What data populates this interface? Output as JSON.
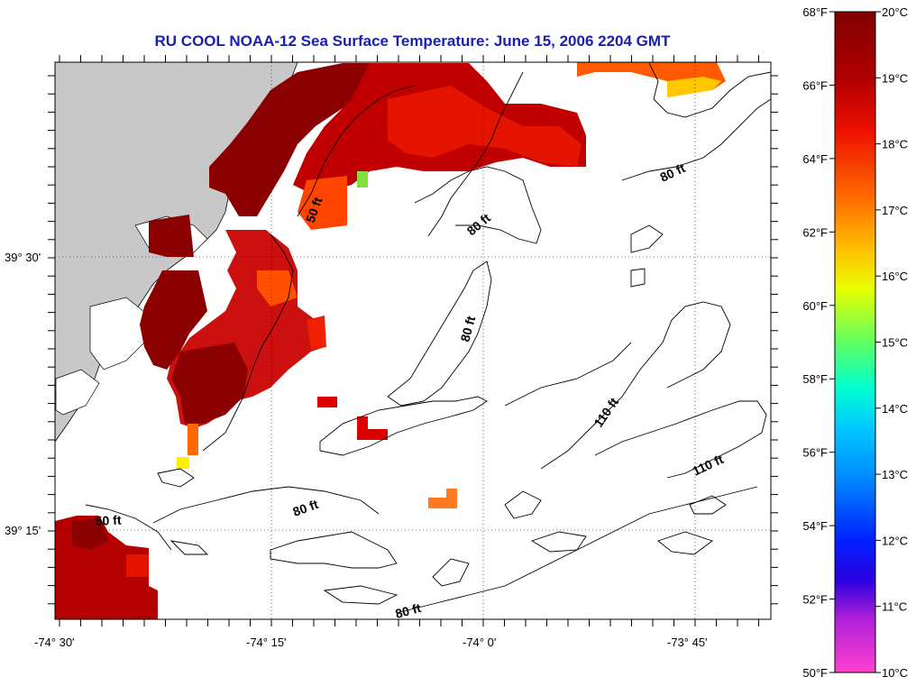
{
  "title": "RU COOL  NOAA-12  Sea Surface Temperature:  June 15, 2006 2204 GMT",
  "map": {
    "lat_labels": [
      "39° 30'",
      "39° 15'"
    ],
    "lon_labels": [
      "-74° 30'",
      "-74° 15'",
      "-74° 0'",
      "-73° 45'"
    ],
    "contour_labels": [
      "50 ft",
      "80 ft",
      "80 ft",
      "80 ft",
      "80 ft",
      "110 ft",
      "110 ft",
      "50 ft",
      "80 ft"
    ],
    "colors": {
      "land": "#c8c8c8",
      "ocean": "#ffffff",
      "frame": "#000000",
      "contour": "#000000"
    }
  },
  "colorbar": {
    "f_labels": [
      "68°F",
      "66°F",
      "64°F",
      "62°F",
      "60°F",
      "58°F",
      "56°F",
      "54°F",
      "52°F",
      "50°F"
    ],
    "c_labels": [
      "20°C",
      "19°C",
      "18°C",
      "17°C",
      "16°C",
      "15°C",
      "14°C",
      "13°C",
      "12°C",
      "11°C",
      "10°C"
    ],
    "stops": [
      "#800000",
      "#cc0000",
      "#ff2a00",
      "#ff8c00",
      "#ffd700",
      "#bfff00",
      "#00e0a0",
      "#00c8ff",
      "#0070ff",
      "#0000e0",
      "#8a2be2",
      "#ff40d0"
    ]
  }
}
